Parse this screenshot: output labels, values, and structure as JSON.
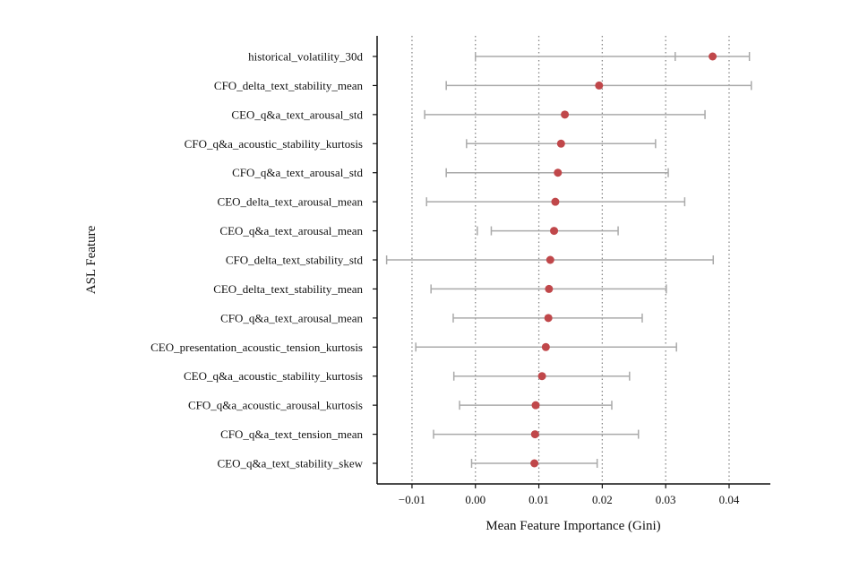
{
  "chart_data": {
    "type": "scatter",
    "variant": "dot-with-error-bars",
    "xlabel": "Mean Feature Importance (Gini)",
    "ylabel": "ASL Feature",
    "xlim": [
      -0.0155,
      0.0465
    ],
    "xticks": [
      -0.01,
      0.0,
      0.01,
      0.02,
      0.03,
      0.04
    ],
    "xtick_labels": [
      "−0.01",
      "0.00",
      "0.01",
      "0.02",
      "0.03",
      "0.04"
    ],
    "grid": "vertical dotted at x ticks",
    "colors": {
      "point": "#c0474a",
      "errorbar": "#aaaaaa",
      "grid": "#888888",
      "axis": "#111111"
    },
    "categories": [
      "historical_volatility_30d",
      "CFO_delta_text_stability_mean",
      "CEO_q&a_text_arousal_std",
      "CFO_q&a_acoustic_stability_kurtosis",
      "CFO_q&a_text_arousal_std",
      "CEO_delta_text_arousal_mean",
      "CEO_q&a_text_arousal_mean",
      "CFO_delta_text_stability_std",
      "CEO_delta_text_stability_mean",
      "CFO_q&a_text_arousal_mean",
      "CEO_presentation_acoustic_tension_kurtosis",
      "CEO_q&a_acoustic_stability_kurtosis",
      "CFO_q&a_acoustic_arousal_kurtosis",
      "CFO_q&a_text_tension_mean",
      "CEO_q&a_text_stability_skew"
    ],
    "values": [
      0.0374,
      0.0195,
      0.0141,
      0.0135,
      0.013,
      0.0126,
      0.0124,
      0.0118,
      0.0116,
      0.0115,
      0.0111,
      0.0105,
      0.0095,
      0.0094,
      0.0093
    ],
    "error_low": [
      0.0,
      -0.0046,
      -0.008,
      -0.0014,
      -0.0046,
      -0.0077,
      0.0025,
      -0.014,
      -0.007,
      -0.0035,
      -0.0094,
      -0.0034,
      -0.0025,
      -0.0066,
      -0.0006
    ],
    "error_high": [
      0.0432,
      0.0435,
      0.0362,
      0.0284,
      0.0304,
      0.033,
      0.0225,
      0.0375,
      0.0301,
      0.0263,
      0.0317,
      0.0243,
      0.0215,
      0.0257,
      0.0192
    ],
    "extra_caps": [
      {
        "index": 0,
        "x": 0.0315
      },
      {
        "index": 6,
        "x": 0.0003
      }
    ]
  }
}
